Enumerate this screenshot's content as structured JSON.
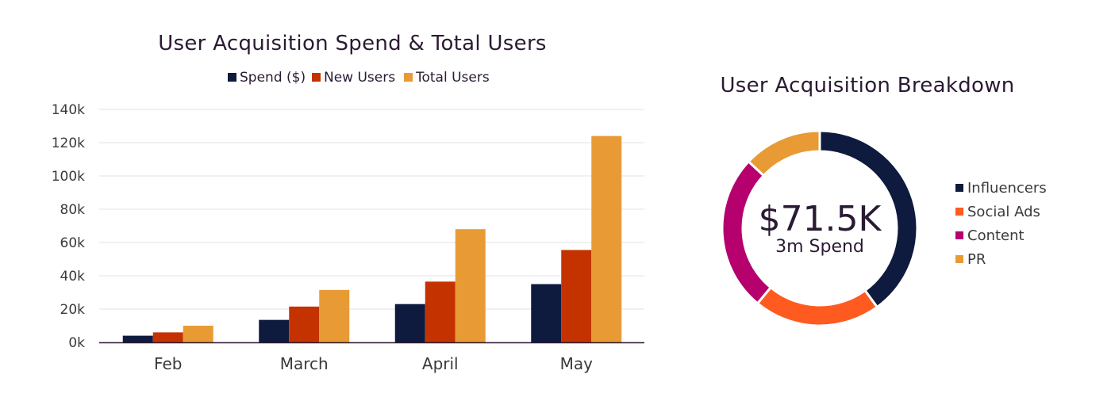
{
  "chart_data": [
    {
      "type": "bar",
      "title": "User Acquisition Spend & Total Users",
      "xlabel": "",
      "ylabel": "",
      "ylim": [
        0,
        140000
      ],
      "yticks": [
        "0k",
        "20k",
        "40k",
        "60k",
        "80k",
        "100k",
        "120k",
        "140k"
      ],
      "ytick_values": [
        0,
        20000,
        40000,
        60000,
        80000,
        100000,
        120000,
        140000
      ],
      "categories": [
        "Feb",
        "March",
        "April",
        "May"
      ],
      "series": [
        {
          "name": "Spend ($)",
          "color": "#0e1a3e",
          "values": [
            4000,
            13500,
            23000,
            35000
          ]
        },
        {
          "name": "New Users",
          "color": "#c43200",
          "values": [
            6000,
            21500,
            36500,
            55500
          ]
        },
        {
          "name": "Total Users",
          "color": "#e89b35",
          "values": [
            10000,
            31500,
            68000,
            124000
          ]
        }
      ],
      "grid": true,
      "legend_position": "top-center"
    },
    {
      "type": "pie",
      "title": "User Acquisition Breakdown",
      "center_value": "$71.5K",
      "center_label": "3m Spend",
      "slices": [
        {
          "label": "Influencers",
          "value": 40,
          "color": "#0e1a3e"
        },
        {
          "label": "Social Ads",
          "value": 21,
          "color": "#ff5a1f"
        },
        {
          "label": "Content",
          "value": 26,
          "color": "#b5006e"
        },
        {
          "label": "PR",
          "value": 13,
          "color": "#e89b35"
        }
      ],
      "legend_position": "right"
    }
  ]
}
